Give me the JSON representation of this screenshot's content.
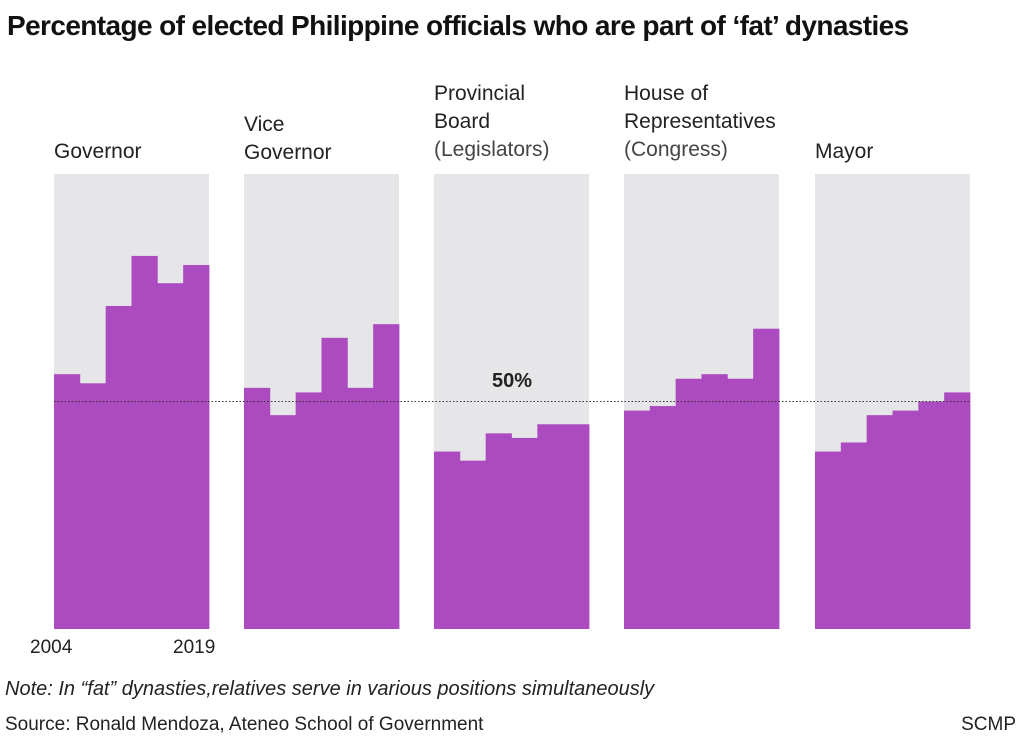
{
  "title": "Percentage of elected Philippine officials who are part of ‘fat’ dynasties",
  "note": "Note: In “fat” dynasties,relatives serve in various positions simultaneously",
  "source": "Source: Ronald Mendoza, Ateneo School of Government",
  "brand": "SCMP",
  "colors": {
    "bar": "#ab4bbf",
    "panel_bg": "#e6e6e8",
    "reference": "#333333"
  },
  "chart_data": {
    "type": "bar",
    "x_start_label": "2004",
    "x_end_label": "2019",
    "ylim": [
      0,
      100
    ],
    "reference_line": {
      "value": 50,
      "label": "50%"
    },
    "grid": false,
    "panels": [
      {
        "name_lines": [
          "Governor"
        ],
        "sub": "",
        "values": [
          56,
          54,
          71,
          82,
          76,
          80
        ]
      },
      {
        "name_lines": [
          "Vice",
          "Governor"
        ],
        "sub": "",
        "values": [
          53,
          47,
          52,
          64,
          53,
          67
        ]
      },
      {
        "name_lines": [
          "Provincial",
          "Board"
        ],
        "sub": "(Legislators)",
        "values": [
          39,
          37,
          43,
          42,
          45,
          45
        ]
      },
      {
        "name_lines": [
          "House of",
          "Representatives"
        ],
        "sub": "(Congress)",
        "values": [
          48,
          49,
          55,
          56,
          55,
          66
        ]
      },
      {
        "name_lines": [
          "Mayor"
        ],
        "sub": "",
        "values": [
          39,
          41,
          47,
          48,
          50,
          52
        ]
      }
    ]
  }
}
